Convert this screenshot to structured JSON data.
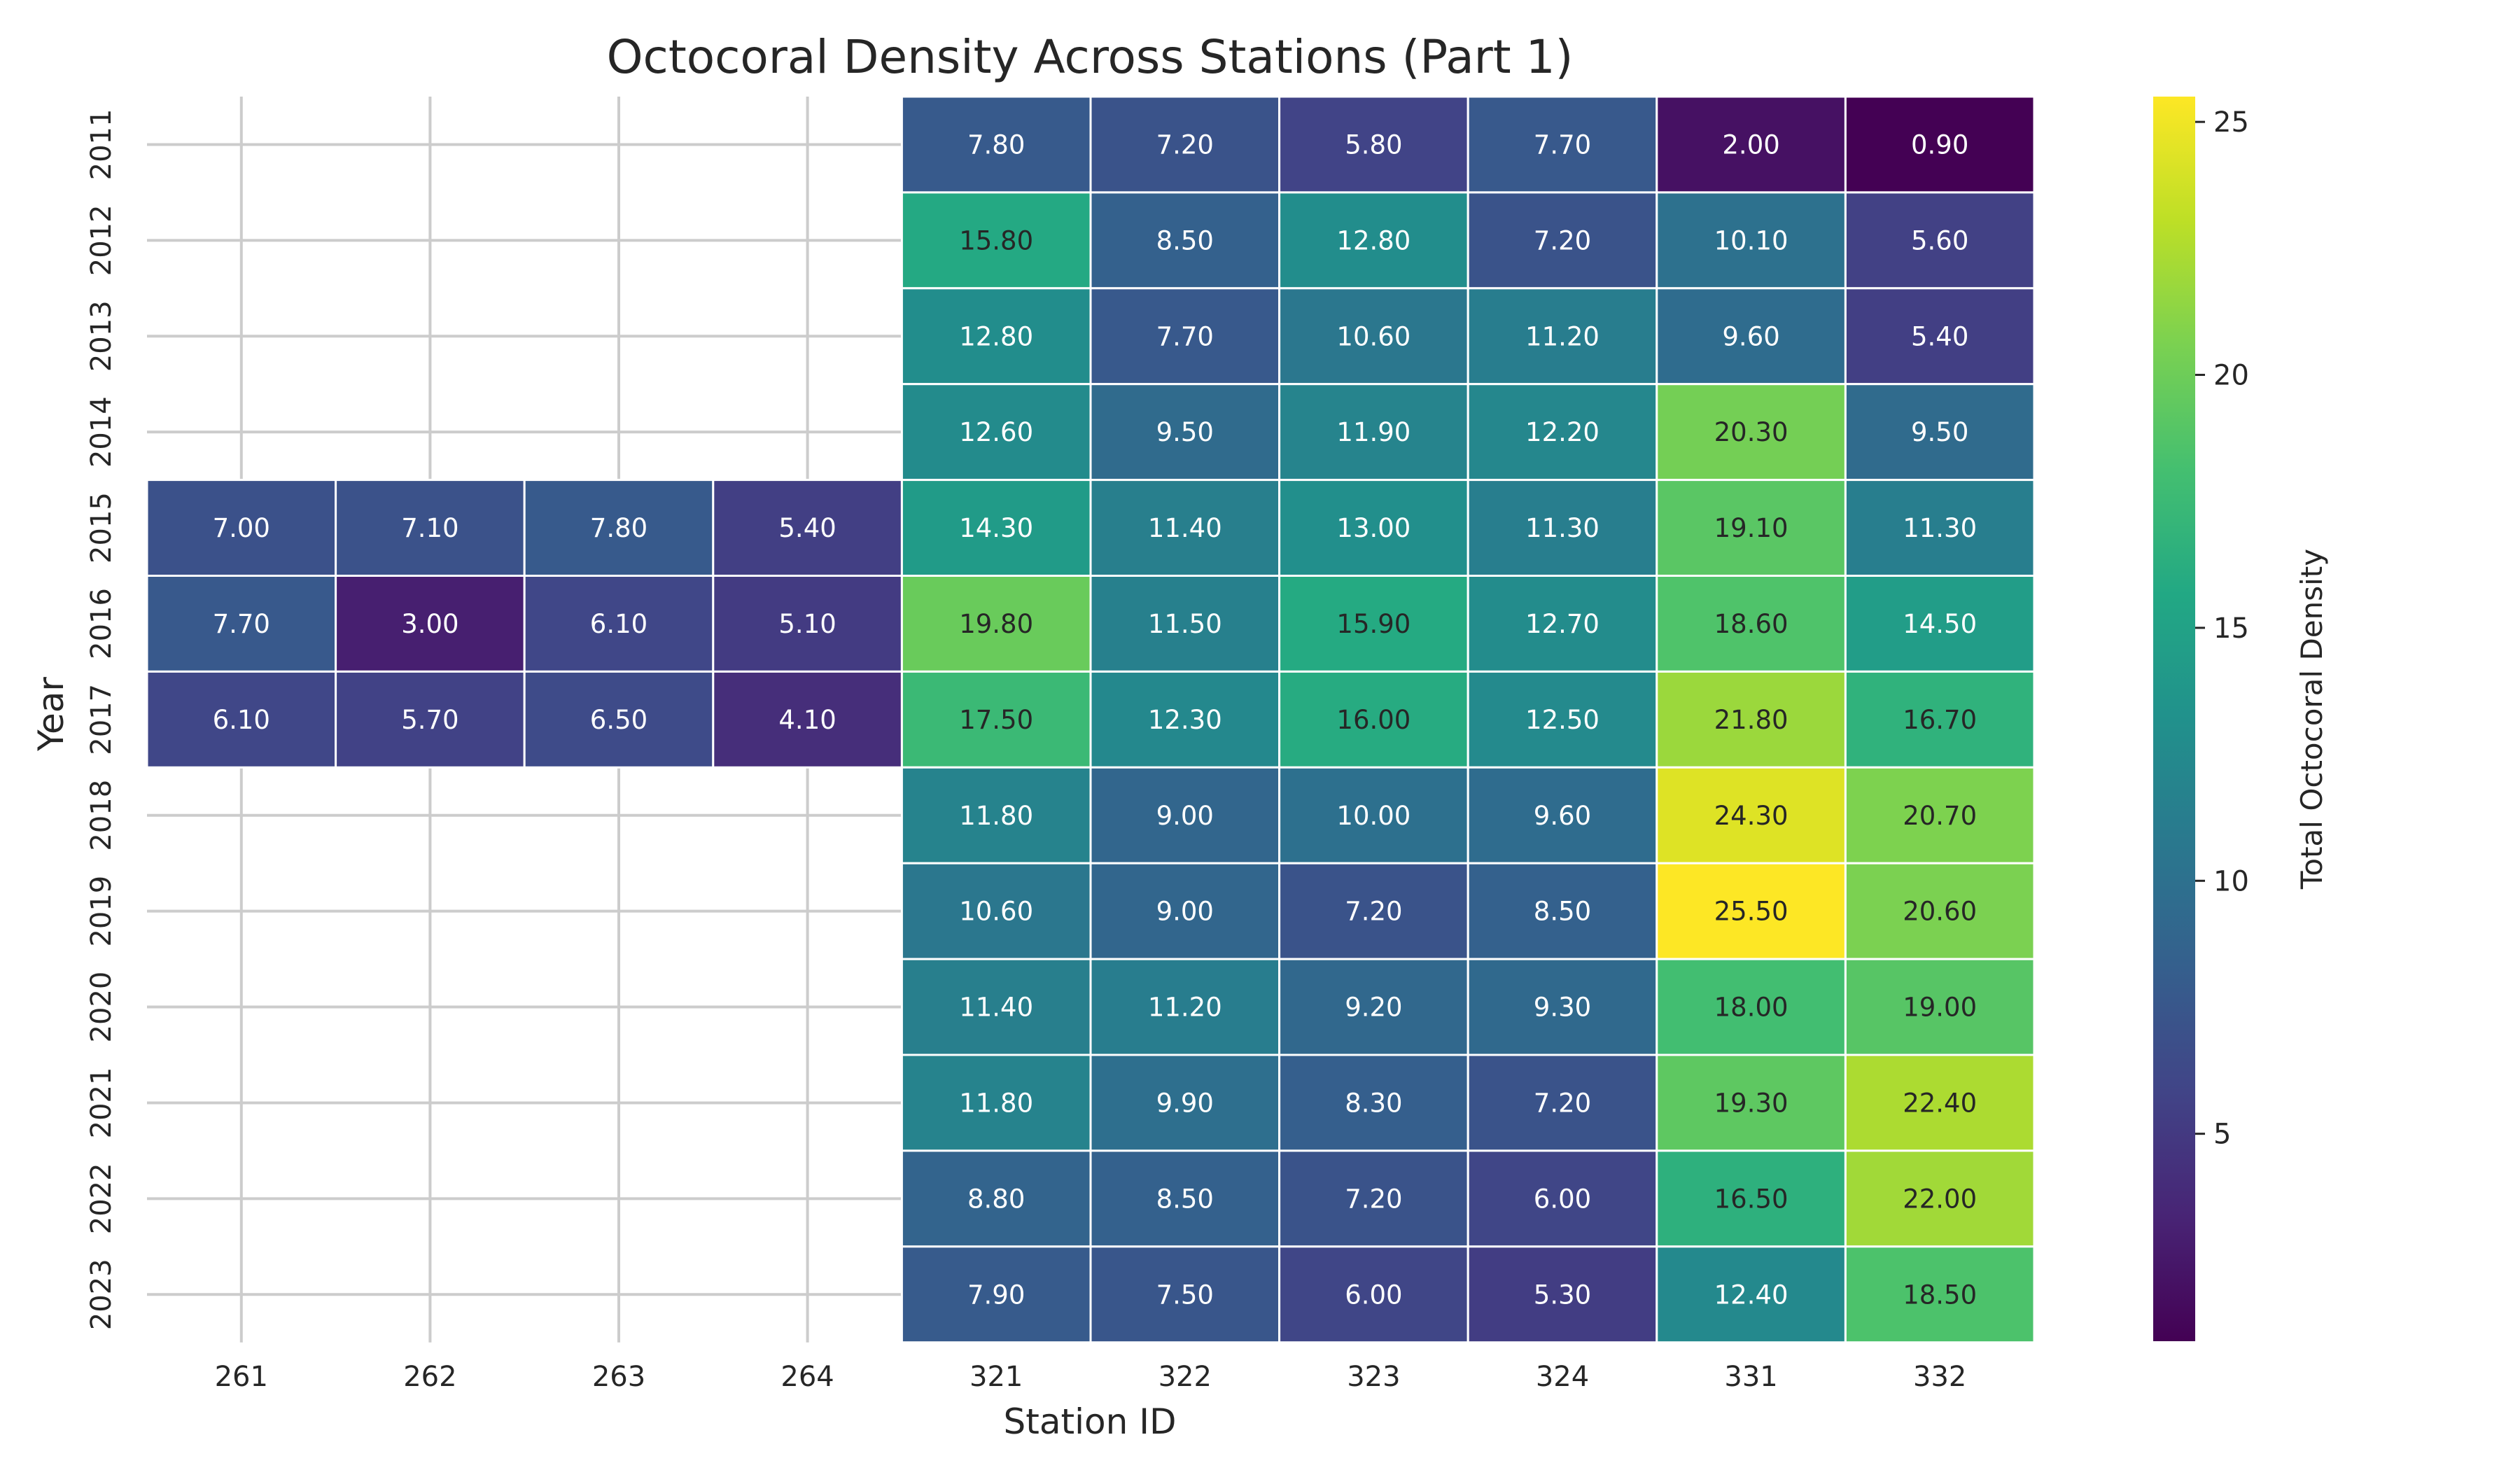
{
  "chart_data": {
    "type": "heatmap",
    "title": "Octocoral Density Across Stations (Part 1)",
    "xlabel": "Station ID",
    "ylabel": "Year",
    "colorbar_label": "Total Octocoral Density",
    "colormap": "viridis",
    "value_range": [
      0.9,
      25.5
    ],
    "colorbar_ticks": [
      5,
      10,
      15,
      20,
      25
    ],
    "colorbar_tick_labels": [
      "5",
      "10",
      "15",
      "20",
      "25"
    ],
    "grid": true,
    "x_categories": [
      "261",
      "262",
      "263",
      "264",
      "321",
      "322",
      "323",
      "324",
      "331",
      "332"
    ],
    "y_categories": [
      "2011",
      "2012",
      "2013",
      "2014",
      "2015",
      "2016",
      "2017",
      "2018",
      "2019",
      "2020",
      "2021",
      "2022",
      "2023"
    ],
    "values": [
      [
        null,
        null,
        null,
        null,
        7.8,
        7.2,
        5.8,
        7.7,
        2.0,
        0.9
      ],
      [
        null,
        null,
        null,
        null,
        15.8,
        8.5,
        12.8,
        7.2,
        10.1,
        5.6
      ],
      [
        null,
        null,
        null,
        null,
        12.8,
        7.7,
        10.6,
        11.2,
        9.6,
        5.4
      ],
      [
        null,
        null,
        null,
        null,
        12.6,
        9.5,
        11.9,
        12.2,
        20.3,
        9.5
      ],
      [
        7.0,
        7.1,
        7.8,
        5.4,
        14.3,
        11.4,
        13.0,
        11.3,
        19.1,
        11.3
      ],
      [
        7.7,
        3.0,
        6.1,
        5.1,
        19.8,
        11.5,
        15.9,
        12.7,
        18.6,
        14.5
      ],
      [
        6.1,
        5.7,
        6.5,
        4.1,
        17.5,
        12.3,
        16.0,
        12.5,
        21.8,
        16.7
      ],
      [
        null,
        null,
        null,
        null,
        11.8,
        9.0,
        10.0,
        9.6,
        24.3,
        20.7
      ],
      [
        null,
        null,
        null,
        null,
        10.6,
        9.0,
        7.2,
        8.5,
        25.5,
        20.6
      ],
      [
        null,
        null,
        null,
        null,
        11.4,
        11.2,
        9.2,
        9.3,
        18.0,
        19.0
      ],
      [
        null,
        null,
        null,
        null,
        11.8,
        9.9,
        8.3,
        7.2,
        19.3,
        22.4
      ],
      [
        null,
        null,
        null,
        null,
        8.8,
        8.5,
        7.2,
        6.0,
        16.5,
        22.0
      ],
      [
        null,
        null,
        null,
        null,
        7.9,
        7.5,
        6.0,
        5.3,
        12.4,
        18.5
      ]
    ],
    "cell_labels": [
      [
        "",
        "",
        "",
        "",
        "7.80",
        "7.20",
        "5.80",
        "7.70",
        "2.00",
        "0.90"
      ],
      [
        "",
        "",
        "",
        "",
        "15.80",
        "8.50",
        "12.80",
        "7.20",
        "10.10",
        "5.60"
      ],
      [
        "",
        "",
        "",
        "",
        "12.80",
        "7.70",
        "10.60",
        "11.20",
        "9.60",
        "5.40"
      ],
      [
        "",
        "",
        "",
        "",
        "12.60",
        "9.50",
        "11.90",
        "12.20",
        "20.30",
        "9.50"
      ],
      [
        "7.00",
        "7.10",
        "7.80",
        "5.40",
        "14.30",
        "11.40",
        "13.00",
        "11.30",
        "19.10",
        "11.30"
      ],
      [
        "7.70",
        "3.00",
        "6.10",
        "5.10",
        "19.80",
        "11.50",
        "15.90",
        "12.70",
        "18.60",
        "14.50"
      ],
      [
        "6.10",
        "5.70",
        "6.50",
        "4.10",
        "17.50",
        "12.30",
        "16.00",
        "12.50",
        "21.80",
        "16.70"
      ],
      [
        "",
        "",
        "",
        "",
        "11.80",
        "9.00",
        "10.00",
        "9.60",
        "24.30",
        "20.70"
      ],
      [
        "",
        "",
        "",
        "",
        "10.60",
        "9.00",
        "7.20",
        "8.50",
        "25.50",
        "20.60"
      ],
      [
        "",
        "",
        "",
        "",
        "11.40",
        "11.20",
        "9.20",
        "9.30",
        "18.00",
        "19.00"
      ],
      [
        "",
        "",
        "",
        "",
        "11.80",
        "9.90",
        "8.30",
        "7.20",
        "19.30",
        "22.40"
      ],
      [
        "",
        "",
        "",
        "",
        "8.80",
        "8.50",
        "7.20",
        "6.00",
        "16.50",
        "22.00"
      ],
      [
        "",
        "",
        "",
        "",
        "7.90",
        "7.50",
        "6.00",
        "5.30",
        "12.40",
        "18.50"
      ]
    ]
  }
}
